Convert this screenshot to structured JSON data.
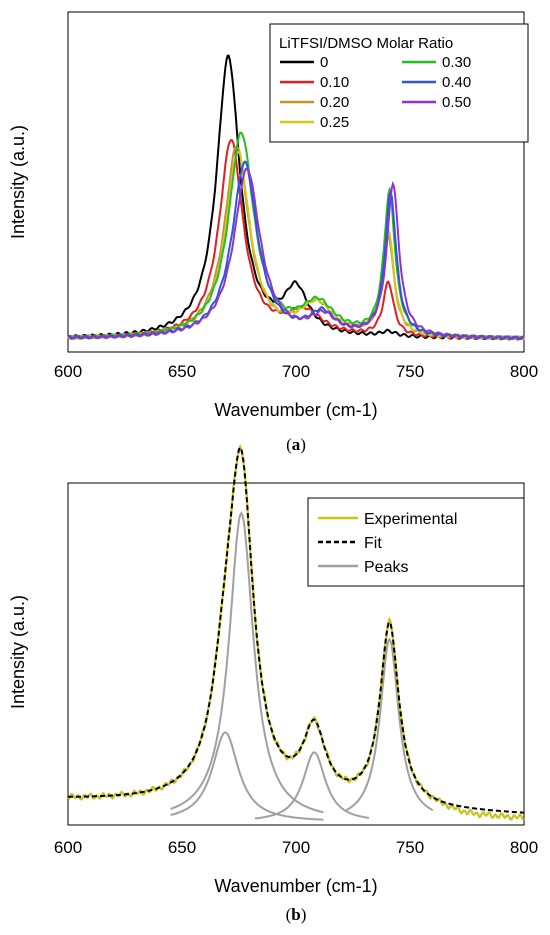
{
  "chart_data": [
    {
      "panel": "a",
      "type": "line",
      "caption_prefix": "(",
      "caption_letter": "a",
      "caption_suffix": ")",
      "xlabel": "Wavenumber (cm-1)",
      "ylabel": "Intensity (a.u.)",
      "xlim": [
        600,
        800
      ],
      "xticks": [
        "600",
        "650",
        "700",
        "750",
        "800"
      ],
      "grid": false,
      "legend_title": "LiTFSI/DMSO Molar Ratio",
      "legend_position": "top-right",
      "series": [
        {
          "name": "0",
          "color": "#000000",
          "peaks": [
            [
              670.3,
              0.88,
              6.2
            ],
            [
              700.0,
              0.14,
              6.5
            ],
            [
              740.5,
              0.015,
              4.0
            ]
          ]
        },
        {
          "name": "0.10",
          "color": "#e02020",
          "peaks": [
            [
              671.5,
              0.62,
              6.3
            ],
            [
              703.5,
              0.075,
              10.0
            ],
            [
              740.5,
              0.17,
              2.8
            ]
          ]
        },
        {
          "name": "0.20",
          "color": "#c8922a",
          "peaks": [
            [
              674.0,
              0.6,
              6.5
            ],
            [
              709.0,
              0.1,
              9.0
            ],
            [
              740.5,
              0.31,
              3.0
            ]
          ]
        },
        {
          "name": "0.25",
          "color": "#d4c81e",
          "peaks": [
            [
              674.5,
              0.58,
              6.5
            ],
            [
              709.0,
              0.1,
              9.0
            ],
            [
              740.5,
              0.33,
              3.0
            ]
          ]
        },
        {
          "name": "0.30",
          "color": "#22c022",
          "peaks": [
            [
              676.0,
              0.64,
              6.8
            ],
            [
              709.5,
              0.1,
              9.0
            ],
            [
              741.0,
              0.45,
              3.0
            ]
          ]
        },
        {
          "name": "0.40",
          "color": "#2f55d8",
          "peaks": [
            [
              677.5,
              0.55,
              6.8
            ],
            [
              711.5,
              0.07,
              7.0
            ],
            [
              741.5,
              0.45,
              3.0
            ]
          ]
        },
        {
          "name": "0.50",
          "color": "#8a34d8",
          "peaks": [
            [
              678.5,
              0.53,
              7.0
            ],
            [
              712.0,
              0.06,
              7.0
            ],
            [
              742.5,
              0.48,
              3.2
            ]
          ]
        }
      ],
      "baseline": 0.025
    },
    {
      "panel": "b",
      "type": "line",
      "caption_prefix": "(",
      "caption_letter": "b",
      "caption_suffix": ")",
      "xlabel": "Wavenumber (cm-1)",
      "ylabel": "Intensity (a.u.)",
      "xlim": [
        600,
        800
      ],
      "xticks": [
        "600",
        "650",
        "700",
        "750",
        "800"
      ],
      "grid": false,
      "legend_position": "top-right",
      "series": [
        {
          "name": "Experimental",
          "color": "#c8c21e",
          "style": "solid"
        },
        {
          "name": "Fit",
          "color": "#000000",
          "style": "dashed"
        },
        {
          "name": "Peaks",
          "color": "#a0a0a0",
          "style": "solid"
        }
      ],
      "peaks": [
        {
          "center": 669.0,
          "height": 0.27,
          "width": 7.0,
          "range": [
            645,
            712
          ]
        },
        {
          "center": 676.0,
          "height": 0.93,
          "width": 6.5,
          "range": [
            645,
            712
          ]
        },
        {
          "center": 708.0,
          "height": 0.21,
          "width": 6.0,
          "range": [
            682,
            732
          ]
        },
        {
          "center": 741.0,
          "height": 0.55,
          "width": 5.0,
          "range": [
            722,
            760
          ]
        }
      ],
      "baseline": {
        "at_600": 0.065,
        "at_800": 0.02
      }
    }
  ]
}
